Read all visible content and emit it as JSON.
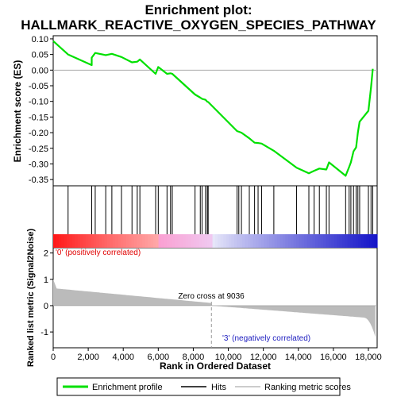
{
  "chart_data": {
    "type": "line",
    "title_line1": "Enrichment plot:",
    "title_line2": "HALLMARK_REACTIVE_OXYGEN_SPECIES_PATHWAY",
    "es_ylabel": "Enrichment score (ES)",
    "metric_ylabel": "Ranked list metric (Signal2Noise)",
    "xlabel": "Rank in Ordered Dataset",
    "xlim": [
      0,
      18500
    ],
    "x_ticks": [
      0,
      2000,
      4000,
      6000,
      8000,
      10000,
      12000,
      14000,
      16000,
      18000
    ],
    "x_tick_labels": [
      "0",
      "2,000",
      "4,000",
      "6,000",
      "8,000",
      "10,000",
      "12,000",
      "14,000",
      "16,000",
      "18,000"
    ],
    "es_ylim": [
      -0.37,
      0.11
    ],
    "es_ticks": [
      0.1,
      0.05,
      0.0,
      -0.05,
      -0.1,
      -0.15,
      -0.2,
      -0.25,
      -0.3,
      -0.35
    ],
    "es_tick_labels": [
      "0.10",
      "0.05",
      "0.00",
      "-0.05",
      "-0.10",
      "-0.15",
      "-0.20",
      "-0.25",
      "-0.30",
      "-0.35"
    ],
    "metric_ylim": [
      -1.6,
      2.2
    ],
    "metric_ticks": [
      2,
      1,
      0,
      -1
    ],
    "metric_tick_labels": [
      "2",
      "1",
      "0",
      "-1"
    ],
    "zero_cross_rank": 9036,
    "zero_cross_label": "Zero cross at 9036",
    "pos_label": "'0' (positively correlated)",
    "neg_label": "'3' (negatively correlated)",
    "colors": {
      "enrichment_line": "#00e000",
      "pos_label": "#e00000",
      "neg_label": "#2020c0",
      "metric_fill": "#bbbbbb",
      "heat_pos": "#ff0000",
      "heat_mid": "#ffffff",
      "heat_neg": "#0000ff"
    },
    "hits": [
      0,
      850,
      2200,
      2400,
      3000,
      3350,
      3900,
      4500,
      4800,
      4950,
      5850,
      6000,
      6500,
      6700,
      6800,
      8100,
      8400,
      8500,
      8700,
      8800,
      8850,
      10500,
      10600,
      10750,
      11200,
      11500,
      11700,
      11900,
      12600,
      13900,
      14600,
      14900,
      15200,
      15600,
      15750,
      16700,
      16900,
      17000,
      17150,
      17300,
      17400,
      17500,
      18000,
      18150,
      18250
    ],
    "es_series": {
      "name": "Enrichment profile",
      "x": [
        0,
        850,
        2200,
        2200,
        2400,
        3000,
        3350,
        3900,
        4500,
        4800,
        4950,
        5850,
        6000,
        6500,
        6700,
        6800,
        8100,
        8400,
        8500,
        8700,
        8800,
        8850,
        10500,
        10600,
        10750,
        11200,
        11500,
        11700,
        11900,
        12600,
        13900,
        14600,
        14900,
        15200,
        15600,
        15750,
        16700,
        16900,
        17000,
        17150,
        17300,
        17400,
        17500,
        18000,
        18150,
        18250
      ],
      "y": [
        0.093,
        0.05,
        0.016,
        0.04,
        0.055,
        0.048,
        0.052,
        0.042,
        0.025,
        0.027,
        0.034,
        -0.012,
        0.01,
        -0.012,
        -0.01,
        -0.012,
        -0.078,
        -0.088,
        -0.092,
        -0.095,
        -0.101,
        -0.102,
        -0.195,
        -0.197,
        -0.2,
        -0.218,
        -0.232,
        -0.233,
        -0.235,
        -0.258,
        -0.312,
        -0.33,
        -0.322,
        -0.315,
        -0.318,
        -0.295,
        -0.338,
        -0.31,
        -0.295,
        -0.26,
        -0.247,
        -0.2,
        -0.165,
        -0.13,
        -0.055,
        0.004
      ]
    },
    "legend": [
      "Enrichment profile",
      "Hits",
      "Ranking metric scores"
    ]
  }
}
